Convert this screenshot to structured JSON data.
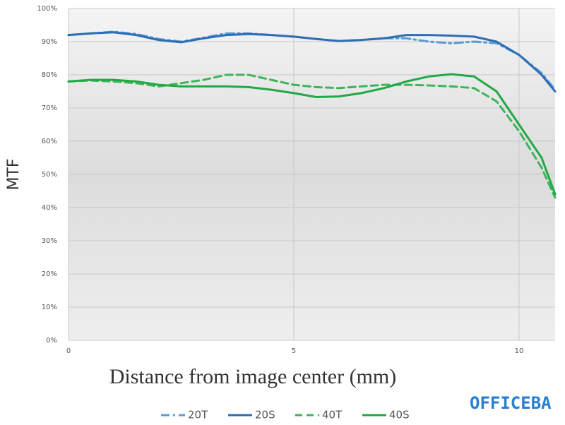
{
  "chart_data": {
    "type": "line",
    "x_label": "Distance from image center (mm)",
    "y_label": "MTF",
    "watermark": "OFFICEBA",
    "xlim": [
      0,
      10.8
    ],
    "ylim": [
      0,
      100
    ],
    "xticks": [
      0,
      5,
      10
    ],
    "yticks": [
      {
        "value": 0,
        "label": "0%"
      },
      {
        "value": 10,
        "label": "10%"
      },
      {
        "value": 20,
        "label": "20%"
      },
      {
        "value": 30,
        "label": "30%"
      },
      {
        "value": 40,
        "label": "40%"
      },
      {
        "value": 50,
        "label": "50%"
      },
      {
        "value": 60,
        "label": "60%"
      },
      {
        "value": 70,
        "label": "70%"
      },
      {
        "value": 80,
        "label": "80%"
      },
      {
        "value": 90,
        "label": "90%"
      },
      {
        "value": 100,
        "label": "100%"
      }
    ],
    "grid": true,
    "x": [
      0,
      0.5,
      1,
      1.5,
      2,
      2.5,
      3,
      3.5,
      4,
      4.5,
      5,
      5.5,
      6,
      6.5,
      7,
      7.5,
      8,
      8.5,
      9,
      9.5,
      10,
      10.5,
      10.8
    ],
    "series": [
      {
        "name": "20T",
        "color": "#5b9bd5",
        "dash": "dashdot",
        "values": [
          92,
          92.5,
          93,
          92.3,
          90.8,
          90,
          91.2,
          92.5,
          92.5,
          92,
          91.5,
          90.8,
          90.2,
          90.5,
          91,
          91,
          90,
          89.5,
          90,
          89.5,
          86,
          80.5,
          75.5
        ]
      },
      {
        "name": "20S",
        "color": "#2e6db5",
        "dash": "solid",
        "values": [
          92,
          92.5,
          92.8,
          92,
          90.5,
          89.8,
          91,
          92,
          92.3,
          92,
          91.5,
          90.8,
          90.2,
          90.5,
          91,
          92,
          92,
          91.8,
          91.5,
          90,
          86,
          80,
          75
        ]
      },
      {
        "name": "40T",
        "color": "#3cb55a",
        "dash": "dash",
        "values": [
          78,
          78.3,
          78,
          77.5,
          76.5,
          77.5,
          78.5,
          80,
          80,
          78.5,
          77,
          76.3,
          76,
          76.5,
          77,
          77,
          76.8,
          76.5,
          76,
          72,
          63,
          52,
          43
        ]
      },
      {
        "name": "40S",
        "color": "#22a845",
        "dash": "solid",
        "values": [
          78,
          78.5,
          78.5,
          78,
          77,
          76.5,
          76.5,
          76.5,
          76.3,
          75.5,
          74.5,
          73.3,
          73.5,
          74.5,
          76,
          78,
          79.5,
          80.2,
          79.5,
          75,
          65,
          55,
          44
        ]
      }
    ]
  }
}
